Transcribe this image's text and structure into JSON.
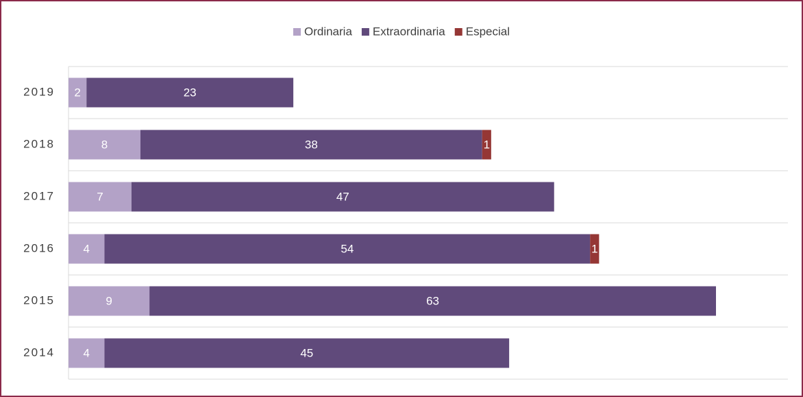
{
  "chart_data": {
    "type": "stacked-bar-horizontal",
    "categories": [
      "2019",
      "2018",
      "2017",
      "2016",
      "2015",
      "2014"
    ],
    "series": [
      {
        "name": "Ordinaria",
        "color": "#b3a2c7",
        "values": [
          2,
          8,
          7,
          4,
          9,
          4
        ]
      },
      {
        "name": "Extraordinaria",
        "color": "#604a7b",
        "values": [
          23,
          38,
          47,
          54,
          63,
          45
        ]
      },
      {
        "name": "Especial",
        "color": "#953735",
        "values": [
          null,
          1,
          null,
          1,
          null,
          null
        ]
      }
    ],
    "xlim": [
      0,
      80
    ],
    "legend": "top"
  }
}
